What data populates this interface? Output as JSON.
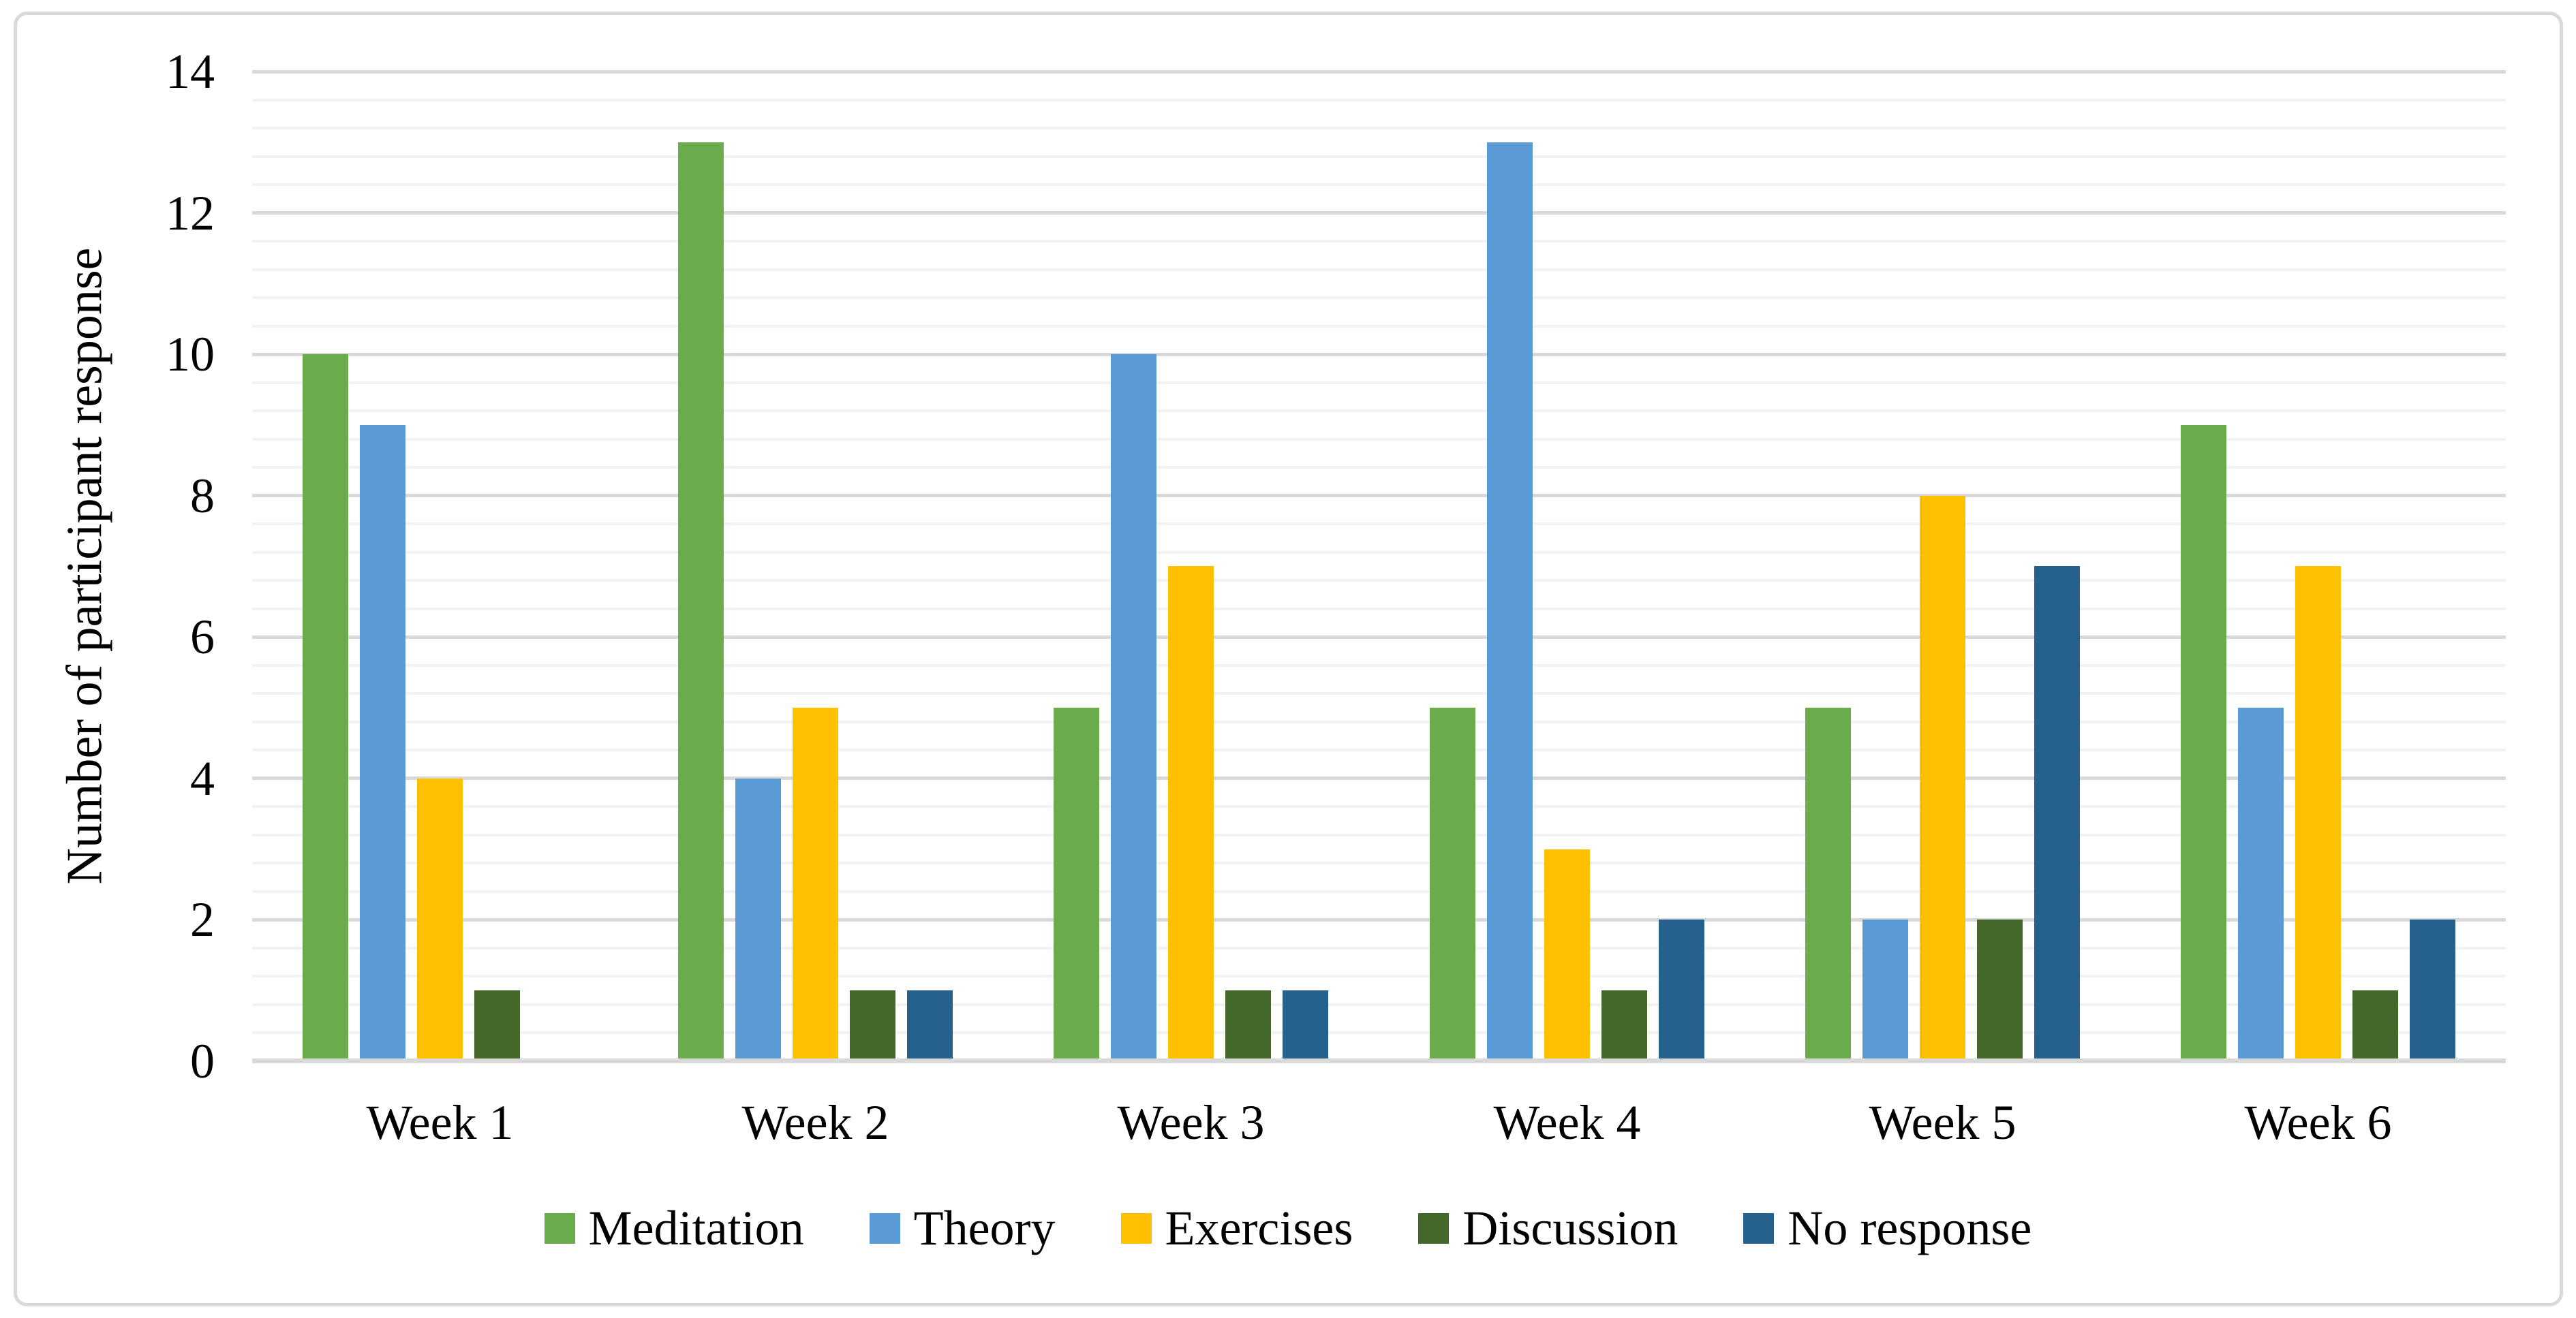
{
  "chart": {
    "background": "#FFFFFF",
    "border_color": "#D9D9D9",
    "grid_major_color": "#D9D9D9",
    "grid_minor_color": "#F2F2F2",
    "axis_color": "#D9D9D9",
    "text_color": "#000000"
  },
  "chart_data": {
    "type": "bar",
    "title": "",
    "xlabel": "",
    "ylabel": "Number of participant response",
    "categories": [
      "Week 1",
      "Week 2",
      "Week 3",
      "Week 4",
      "Week 5",
      "Week 6"
    ],
    "series": [
      {
        "name": "Meditation",
        "color": "#6AAB4B",
        "values": [
          10,
          13,
          5,
          5,
          5,
          9
        ]
      },
      {
        "name": "Theory",
        "color": "#5B9BD5",
        "values": [
          9,
          4,
          10,
          13,
          2,
          5
        ]
      },
      {
        "name": "Exercises",
        "color": "#FFC000",
        "values": [
          4,
          5,
          7,
          3,
          8,
          7
        ]
      },
      {
        "name": "Discussion",
        "color": "#44672A",
        "values": [
          1,
          1,
          1,
          1,
          2,
          1
        ]
      },
      {
        "name": "No response",
        "color": "#26618E",
        "values": [
          0,
          1,
          1,
          2,
          7,
          2
        ]
      }
    ],
    "ylim": [
      0,
      14
    ],
    "yticks": [
      0,
      2,
      4,
      6,
      8,
      10,
      12,
      14
    ],
    "minor_step": 0.4,
    "major_step": 2,
    "grid": true,
    "legend_position": "bottom"
  }
}
